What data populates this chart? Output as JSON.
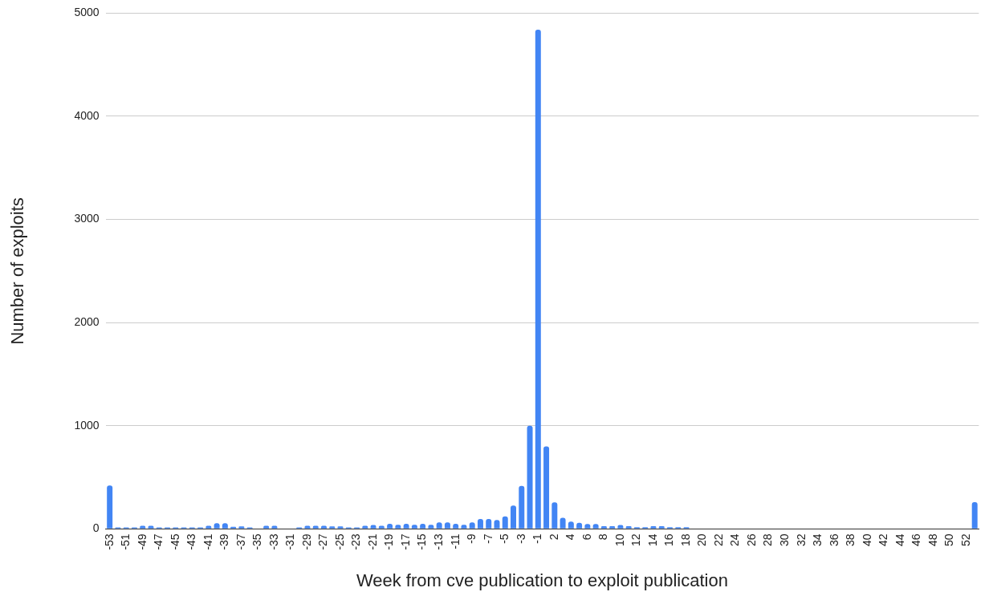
{
  "chart_data": {
    "type": "bar",
    "xlabel": "Week from cve publication to exploit publication",
    "ylabel": "Number of exploits",
    "categories": [
      "-53",
      null,
      "-51",
      null,
      "-49",
      null,
      "-47",
      null,
      "-45",
      null,
      "-43",
      null,
      "-41",
      null,
      "-39",
      null,
      "-37",
      null,
      "-35",
      null,
      "-33",
      null,
      "-31",
      null,
      "-29",
      null,
      "-27",
      null,
      "-25",
      null,
      "-23",
      null,
      "-21",
      null,
      "-19",
      null,
      "-17",
      null,
      "-15",
      null,
      "-13",
      null,
      "-11",
      null,
      "-9",
      null,
      "-7",
      null,
      "-5",
      null,
      "-3",
      null,
      "-1",
      null,
      "2",
      null,
      "4",
      null,
      "6",
      null,
      "8",
      null,
      "10",
      null,
      "12",
      null,
      "14",
      null,
      "16",
      null,
      "18",
      null,
      "20",
      null,
      "22",
      null,
      "24",
      null,
      "26",
      null,
      "28",
      null,
      "30",
      null,
      "32",
      null,
      "34",
      null,
      "36",
      null,
      "38",
      null,
      "40",
      null,
      "42",
      null,
      "44",
      null,
      "46",
      null,
      "48",
      null,
      "50",
      null,
      "52",
      null
    ],
    "values": [
      420,
      15,
      15,
      15,
      30,
      30,
      15,
      15,
      15,
      15,
      15,
      15,
      30,
      55,
      55,
      20,
      25,
      15,
      0,
      30,
      30,
      0,
      0,
      15,
      30,
      30,
      30,
      25,
      25,
      15,
      15,
      30,
      37,
      30,
      50,
      40,
      50,
      40,
      50,
      40,
      63,
      63,
      50,
      40,
      63,
      97,
      97,
      87,
      121,
      226,
      416,
      1000,
      4840,
      800,
      258,
      108,
      71,
      60,
      47,
      47,
      26,
      26,
      37,
      26,
      16,
      16,
      26,
      26,
      16,
      16,
      16,
      0,
      0,
      0,
      0,
      0,
      0,
      0,
      0,
      0,
      0,
      0,
      0,
      0,
      0,
      0,
      0,
      0,
      0,
      0,
      0,
      0,
      0,
      0,
      0,
      0,
      0,
      0,
      0,
      0,
      0,
      0,
      0,
      0,
      0,
      260
    ],
    "color": "#4285f4",
    "ylim": [
      0,
      5000
    ],
    "yticks": [
      0,
      1000,
      2000,
      3000,
      4000,
      5000
    ],
    "grid": "y",
    "legend": false
  }
}
